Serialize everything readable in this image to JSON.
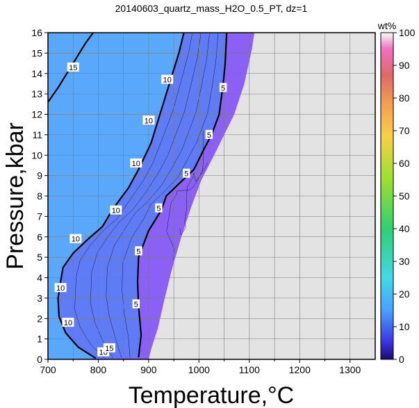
{
  "chart_data": {
    "type": "heatmap",
    "title": "20140603_quartz_mass_H2O_0.5_PT, dz=1",
    "xlabel": "Temperature,°C",
    "ylabel": "Pressure,kbar",
    "xlim": [
      700,
      1350
    ],
    "ylim": [
      0,
      16
    ],
    "x_ticks": [
      700,
      800,
      900,
      1000,
      1100,
      1200,
      1300
    ],
    "y_ticks": [
      0,
      1,
      2,
      3,
      4,
      5,
      6,
      7,
      8,
      9,
      10,
      11,
      12,
      13,
      14,
      15,
      16
    ],
    "grid": true,
    "colorbar": {
      "label": "wt%",
      "range": [
        0,
        100
      ],
      "ticks": [
        0,
        10,
        20,
        30,
        40,
        50,
        60,
        70,
        80,
        90,
        100
      ]
    },
    "contours": [
      {
        "level": "15",
        "points": [
          [
            700,
            12.6
          ],
          [
            720,
            13.3
          ],
          [
            745,
            14.3
          ],
          [
            775,
            15.5
          ],
          [
            790,
            16
          ]
        ]
      },
      {
        "level": "10",
        "points": [
          [
            795,
            0.05
          ],
          [
            760,
            0.6
          ],
          [
            735,
            1.3
          ],
          [
            722,
            2.1
          ],
          [
            720,
            3.0
          ],
          [
            725,
            3.8
          ],
          [
            730,
            4.5
          ],
          [
            750,
            5.2
          ],
          [
            780,
            5.9
          ],
          [
            808,
            6.5
          ],
          [
            830,
            7.4
          ],
          [
            860,
            8.4
          ],
          [
            880,
            9.3
          ],
          [
            905,
            10.6
          ],
          [
            925,
            12.2
          ],
          [
            945,
            13.8
          ],
          [
            960,
            15.0
          ],
          [
            970,
            16
          ]
        ]
      },
      {
        "level": "5",
        "points": [
          [
            880,
            0.1
          ],
          [
            885,
            1.2
          ],
          [
            880,
            2.6
          ],
          [
            878,
            3.8
          ],
          [
            880,
            5.0
          ],
          [
            900,
            6.3
          ],
          [
            925,
            7.3
          ],
          [
            935,
            8.0
          ],
          [
            960,
            8.6
          ],
          [
            990,
            9.3
          ],
          [
            1010,
            10.3
          ],
          [
            1025,
            11.0
          ],
          [
            1040,
            12.0
          ],
          [
            1048,
            13.5
          ],
          [
            1052,
            14.5
          ],
          [
            1055,
            16
          ]
        ]
      }
    ],
    "contour_label_positions": [
      {
        "text": "15",
        "x": 750,
        "y": 14.3
      },
      {
        "text": "10",
        "x": 937,
        "y": 13.7
      },
      {
        "text": "10",
        "x": 900,
        "y": 11.7
      },
      {
        "text": "10",
        "x": 875,
        "y": 9.6
      },
      {
        "text": "10",
        "x": 835,
        "y": 7.3
      },
      {
        "text": "10",
        "x": 755,
        "y": 5.9
      },
      {
        "text": "10",
        "x": 725,
        "y": 3.5
      },
      {
        "text": "10",
        "x": 740,
        "y": 1.8
      },
      {
        "text": "10",
        "x": 810,
        "y": 0.35
      },
      {
        "text": "15",
        "x": 822,
        "y": 0.55
      },
      {
        "text": "5",
        "x": 1048,
        "y": 13.3
      },
      {
        "text": "5",
        "x": 1020,
        "y": 11.0
      },
      {
        "text": "5",
        "x": 975,
        "y": 9.1
      },
      {
        "text": "5",
        "x": 920,
        "y": 7.4
      },
      {
        "text": "5",
        "x": 880,
        "y": 5.3
      },
      {
        "text": "5",
        "x": 875,
        "y": 2.7
      }
    ],
    "colored_region_boundary": [
      [
        700,
        16
      ],
      [
        1110,
        16
      ],
      [
        1105,
        15.2
      ],
      [
        1090,
        13.5
      ],
      [
        1070,
        12.0
      ],
      [
        1050,
        11.0
      ],
      [
        1030,
        10.0
      ],
      [
        1005,
        8.8
      ],
      [
        985,
        7.5
      ],
      [
        965,
        6.0
      ],
      [
        945,
        4.3
      ],
      [
        930,
        2.8
      ],
      [
        918,
        1.5
      ],
      [
        905,
        0.5
      ],
      [
        900,
        0
      ],
      [
        700,
        0
      ]
    ],
    "fill_colors": {
      "light_blue": "#5aa8fb",
      "mid_blue": "#5f7cf5",
      "violet": "#8a60f5",
      "empty": "#e3e3e3",
      "colorbar_stops": [
        "#1a0a6a",
        "#3a30e0",
        "#4aa0ff",
        "#43d8e8",
        "#30d070",
        "#9ae030",
        "#f8d048",
        "#f4a050",
        "#e06868",
        "#f070c0",
        "#fafafa"
      ]
    }
  }
}
